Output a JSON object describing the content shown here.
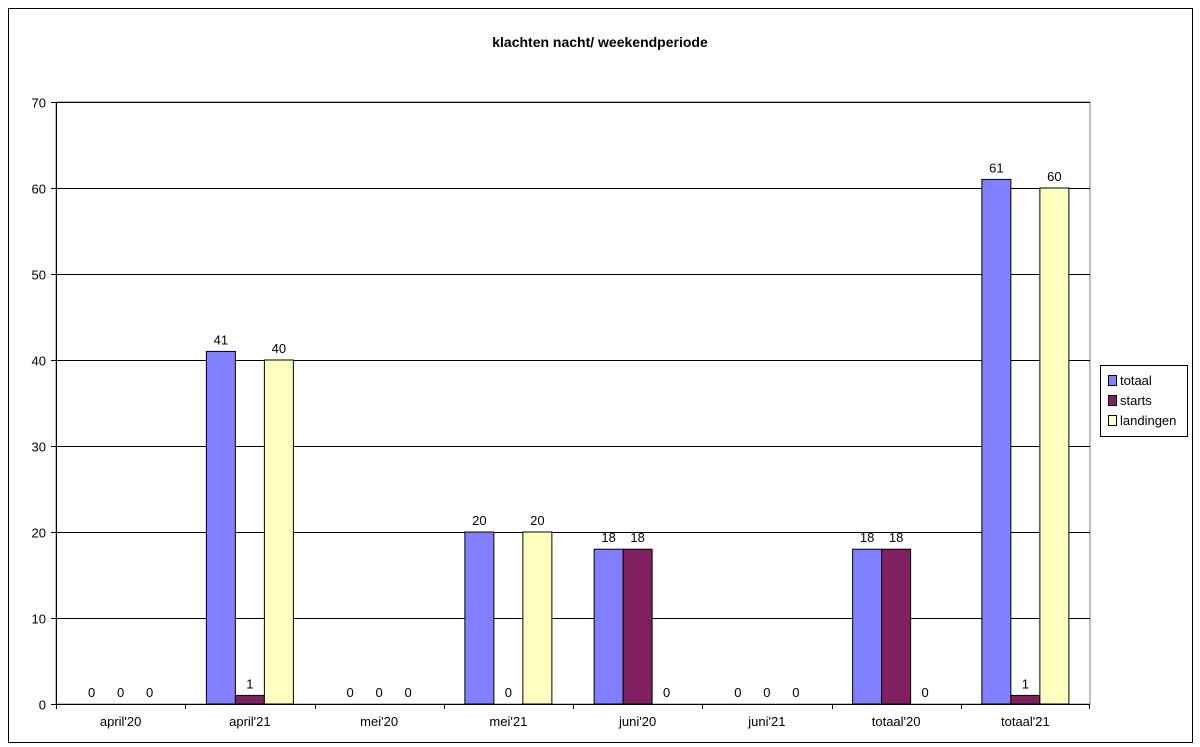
{
  "chart_data": {
    "type": "bar",
    "title": "klachten nacht/ weekendperiode",
    "xlabel": "",
    "ylabel": "",
    "ylim": [
      0,
      70
    ],
    "yticks": [
      0,
      10,
      20,
      30,
      40,
      50,
      60,
      70
    ],
    "grid": true,
    "legend_position": "right",
    "categories": [
      "april'20",
      "april'21",
      "mei'20",
      "mei'21",
      "juni'20",
      "juni'21",
      "totaal'20",
      "totaal'21"
    ],
    "series": [
      {
        "name": "totaal",
        "color": "#8080ff",
        "values": [
          0,
          41,
          0,
          20,
          18,
          0,
          18,
          61
        ]
      },
      {
        "name": "starts",
        "color": "#802060",
        "values": [
          0,
          1,
          0,
          0,
          18,
          0,
          18,
          1
        ]
      },
      {
        "name": "landingen",
        "color": "#ffffc0",
        "values": [
          0,
          40,
          0,
          20,
          0,
          0,
          0,
          60
        ]
      }
    ]
  }
}
